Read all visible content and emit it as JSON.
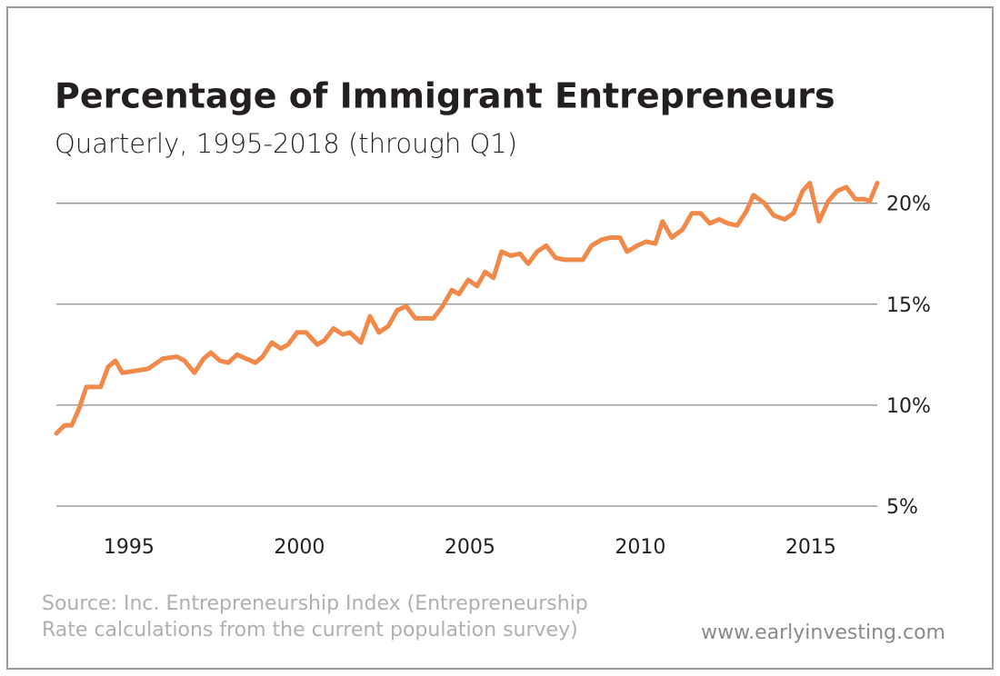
{
  "chart_data": {
    "type": "line",
    "title": "Percentage of Immigrant Entrepreneurs",
    "subtitle": "Quarterly, 1995-2018 (through Q1)",
    "source": [
      "Source: Inc. Entrepreneurship Index (Entrepreneurship",
      "Rate calculations from the current population survey)"
    ],
    "credit": "www.earlyinvesting.com",
    "x": [
      1992.87,
      1993.11,
      1993.32,
      1993.53,
      1993.75,
      1994.17,
      1994.39,
      1994.6,
      1994.81,
      1995.19,
      1995.56,
      1995.99,
      1996.41,
      1996.63,
      1996.92,
      1997.19,
      1997.4,
      1997.67,
      1997.91,
      1998.17,
      1998.44,
      1998.71,
      1998.92,
      1999.19,
      1999.45,
      1999.67,
      1999.93,
      2000.2,
      2000.52,
      2000.73,
      2001.0,
      2001.27,
      2001.48,
      2001.8,
      2002.07,
      2002.33,
      2002.6,
      2002.87,
      2003.13,
      2003.4,
      2003.67,
      2003.93,
      2004.2,
      2004.47,
      2004.68,
      2004.95,
      2005.21,
      2005.45,
      2005.69,
      2005.93,
      2006.2,
      2006.47,
      2006.71,
      2006.97,
      2007.24,
      2007.51,
      2007.77,
      2008.04,
      2008.31,
      2008.57,
      2008.87,
      2009.13,
      2009.4,
      2009.61,
      2009.91,
      2010.17,
      2010.44,
      2010.65,
      2010.92,
      2011.24,
      2011.51,
      2011.77,
      2012.04,
      2012.31,
      2012.57,
      2012.84,
      2013.11,
      2013.32,
      2013.64,
      2013.91,
      2014.23,
      2014.49,
      2014.76,
      2014.97,
      2015.24,
      2015.51,
      2015.77,
      2016.04,
      2016.31,
      2016.57,
      2016.73,
      2016.95
    ],
    "series": [
      {
        "color": "#f0894a",
        "values": [
          8.6,
          9.0,
          9.0,
          9.8,
          10.9,
          10.9,
          11.9,
          12.2,
          11.6,
          11.7,
          11.8,
          12.3,
          12.4,
          12.2,
          11.6,
          12.3,
          12.6,
          12.2,
          12.1,
          12.5,
          12.3,
          12.1,
          12.4,
          13.1,
          12.8,
          13.0,
          13.6,
          13.6,
          13.0,
          13.2,
          13.8,
          13.5,
          13.6,
          13.1,
          14.4,
          13.6,
          13.9,
          14.7,
          14.9,
          14.3,
          14.3,
          14.3,
          14.9,
          15.7,
          15.5,
          16.2,
          15.9,
          16.6,
          16.3,
          17.6,
          17.4,
          17.5,
          17.0,
          17.6,
          17.9,
          17.3,
          17.2,
          17.2,
          17.2,
          17.9,
          18.2,
          18.3,
          18.3,
          17.6,
          17.9,
          18.1,
          18.0,
          19.1,
          18.3,
          18.7,
          19.5,
          19.5,
          19.0,
          19.2,
          19.0,
          18.9,
          19.6,
          20.4,
          20.0,
          19.4,
          19.2,
          19.5,
          20.6,
          21.0,
          19.1,
          20.1,
          20.6,
          20.8,
          20.2,
          20.2,
          20.1,
          21.0
        ]
      }
    ],
    "xlim": [
      1992.87,
      2016.95
    ],
    "xticks": [
      1995,
      2000,
      2005,
      2010,
      2015
    ],
    "ylim": [
      5,
      21.2
    ],
    "yticks": [
      {
        "value": 5,
        "label": "5%"
      },
      {
        "value": 10,
        "label": "10%"
      },
      {
        "value": 15,
        "label": "15%"
      },
      {
        "value": 20,
        "label": "20%"
      }
    ],
    "grid": true
  }
}
